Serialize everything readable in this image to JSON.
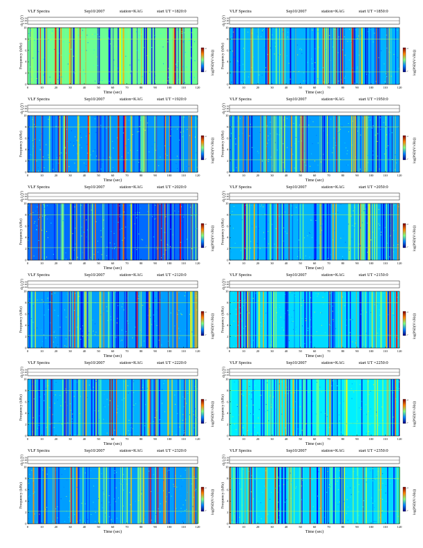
{
  "chart_data": [
    {
      "type": "heatmap",
      "title": "VLF Spectra",
      "date": "Sep10/2007",
      "station": "station=KAG",
      "start": "start  UT =1820:0",
      "ch_label": "ch 1 (V)",
      "ch_ticks": [
        "0.50",
        "0.00",
        "-0.50"
      ],
      "ylabel": "Frequency (kHz)",
      "ylabel_ch": "ch1",
      "xlabel": "Time (sec)",
      "xlim": [
        0,
        120
      ],
      "ylim": [
        0,
        10
      ],
      "xticks": [
        0,
        10,
        20,
        30,
        40,
        50,
        60,
        70,
        80,
        90,
        100,
        110,
        120
      ],
      "yticks": [
        0,
        2,
        4,
        6,
        8,
        10
      ],
      "colorbar_label": "log(PSD(V/√Hz))",
      "colorbar_ticks": [
        "-4",
        "-7"
      ]
    },
    {
      "type": "heatmap",
      "title": "VLF Spectra",
      "date": "Sep10/2007",
      "station": "station=KAG",
      "start": "start  UT =1850:0",
      "ch_label": "ch 1 (V)",
      "ch_ticks": [
        "0.50",
        "0.00",
        "-0.50"
      ],
      "ylabel": "Frequency (kHz)",
      "ylabel_ch": "ch1",
      "xlabel": "Time (sec)",
      "xlim": [
        0,
        120
      ],
      "ylim": [
        0,
        10
      ],
      "xticks": [
        0,
        10,
        20,
        30,
        40,
        50,
        60,
        70,
        80,
        90,
        100,
        110,
        120
      ],
      "yticks": [
        0,
        2,
        4,
        6,
        8,
        10
      ],
      "colorbar_label": "log(PSD(V/√Hz))",
      "colorbar_ticks": [
        "-4",
        "-7"
      ]
    },
    {
      "type": "heatmap",
      "title": "VLF Spectra",
      "date": "Sep10/2007",
      "station": "station=KAG",
      "start": "start  UT =1920:0",
      "ch_label": "ch 1 (V)",
      "ch_ticks": [
        "0.50",
        "0.00",
        "-0.50"
      ],
      "ylabel": "Frequency (kHz)",
      "ylabel_ch": "ch1",
      "xlabel": "Time (sec)",
      "xlim": [
        0,
        120
      ],
      "ylim": [
        0,
        10
      ],
      "xticks": [
        0,
        10,
        20,
        30,
        40,
        50,
        60,
        70,
        80,
        90,
        100,
        110,
        120
      ],
      "yticks": [
        0,
        2,
        4,
        6,
        8,
        10
      ],
      "colorbar_label": "log(PSD(V/√Hz))",
      "colorbar_ticks": [
        "-4",
        "-7"
      ]
    },
    {
      "type": "heatmap",
      "title": "VLF Spectra",
      "date": "Sep10/2007",
      "station": "station=KAG",
      "start": "start  UT =1950:0",
      "ch_label": "ch 1 (V)",
      "ch_ticks": [
        "0.50",
        "0.00",
        "-0.50"
      ],
      "ylabel": "Frequency (kHz)",
      "ylabel_ch": "ch1",
      "xlabel": "Time (sec)",
      "xlim": [
        0,
        120
      ],
      "ylim": [
        0,
        10
      ],
      "xticks": [
        0,
        10,
        20,
        30,
        40,
        50,
        60,
        70,
        80,
        90,
        100,
        110,
        120
      ],
      "yticks": [
        0,
        2,
        4,
        6,
        8,
        10
      ],
      "colorbar_label": "log(PSD(V/√Hz))",
      "colorbar_ticks": [
        "-4",
        "-7"
      ]
    },
    {
      "type": "heatmap",
      "title": "VLF Spectra",
      "date": "Sep10/2007",
      "station": "station=KAG",
      "start": "start  UT =2020:0",
      "ch_label": "ch 1 (V)",
      "ch_ticks": [
        "0.50",
        "0.00",
        "-0.50"
      ],
      "ylabel": "Frequency (kHz)",
      "ylabel_ch": "ch1",
      "xlabel": "Time (sec)",
      "xlim": [
        0,
        120
      ],
      "ylim": [
        0,
        10
      ],
      "xticks": [
        0,
        10,
        20,
        30,
        40,
        50,
        60,
        70,
        80,
        90,
        100,
        110,
        120
      ],
      "yticks": [
        0,
        2,
        4,
        6,
        8,
        10
      ],
      "colorbar_label": "log(PSD(V/√Hz))",
      "colorbar_ticks": [
        "-4",
        "-7"
      ]
    },
    {
      "type": "heatmap",
      "title": "VLF Spectra",
      "date": "Sep10/2007",
      "station": "station=KAG",
      "start": "start  UT =2050:0",
      "ch_label": "ch 1 (V)",
      "ch_ticks": [
        "0.50",
        "0.00",
        "-0.50"
      ],
      "ylabel": "Frequency (kHz)",
      "ylabel_ch": "ch1",
      "xlabel": "Time (sec)",
      "xlim": [
        0,
        120
      ],
      "ylim": [
        0,
        10
      ],
      "xticks": [
        0,
        10,
        20,
        30,
        40,
        50,
        60,
        70,
        80,
        90,
        100,
        110,
        120
      ],
      "yticks": [
        0,
        2,
        4,
        6,
        8,
        10
      ],
      "colorbar_label": "log(PSD(V/√Hz))",
      "colorbar_ticks": [
        "-4",
        "-7"
      ]
    },
    {
      "type": "heatmap",
      "title": "VLF Spectra",
      "date": "Sep10/2007",
      "station": "station=KAG",
      "start": "start  UT =2120:0",
      "ch_label": "ch 1 (V)",
      "ch_ticks": [
        "0.50",
        "0.00",
        "-0.50"
      ],
      "ylabel": "Frequency (kHz)",
      "ylabel_ch": "ch1",
      "xlabel": "Time (sec)",
      "xlim": [
        0,
        120
      ],
      "ylim": [
        0,
        10
      ],
      "xticks": [
        0,
        10,
        20,
        30,
        40,
        50,
        60,
        70,
        80,
        90,
        100,
        110,
        120
      ],
      "yticks": [
        0,
        2,
        4,
        6,
        8,
        10
      ],
      "colorbar_label": "log(PSD(V/√Hz))",
      "colorbar_ticks": [
        "-4",
        "-7"
      ]
    },
    {
      "type": "heatmap",
      "title": "VLF Spectra",
      "date": "Sep10/2007",
      "station": "station=KAG",
      "start": "start  UT =2150:0",
      "ch_label": "ch 1 (V)",
      "ch_ticks": [
        "0.50",
        "0.00",
        "-0.50"
      ],
      "ylabel": "Frequency (kHz)",
      "ylabel_ch": "ch1",
      "xlabel": "Time (sec)",
      "xlim": [
        0,
        120
      ],
      "ylim": [
        0,
        10
      ],
      "xticks": [
        0,
        10,
        20,
        30,
        40,
        50,
        60,
        70,
        80,
        90,
        100,
        110,
        120
      ],
      "yticks": [
        0,
        2,
        4,
        6,
        8,
        10
      ],
      "colorbar_label": "log(PSD(V/√Hz))",
      "colorbar_ticks": [
        "-4",
        "-7"
      ]
    },
    {
      "type": "heatmap",
      "title": "VLF Spectra",
      "date": "Sep10/2007",
      "station": "station=KAG",
      "start": "start  UT =2220:0",
      "ch_label": "ch 1 (V)",
      "ch_ticks": [
        "0.50",
        "0.00",
        "-0.50"
      ],
      "ylabel": "Frequency (kHz)",
      "ylabel_ch": "ch1",
      "xlabel": "Time (sec)",
      "xlim": [
        0,
        120
      ],
      "ylim": [
        0,
        10
      ],
      "xticks": [
        0,
        10,
        20,
        30,
        40,
        50,
        60,
        70,
        80,
        90,
        100,
        110,
        120
      ],
      "yticks": [
        0,
        2,
        4,
        6,
        8,
        10
      ],
      "colorbar_label": "log(PSD(V/√Hz))",
      "colorbar_ticks": [
        "-4",
        "-7"
      ]
    },
    {
      "type": "heatmap",
      "title": "VLF Spectra",
      "date": "Sep10/2007",
      "station": "station=KAG",
      "start": "start  UT =2250:0",
      "ch_label": "ch 1 (V)",
      "ch_ticks": [
        "0.50",
        "0.00",
        "-0.50"
      ],
      "ylabel": "Frequency (kHz)",
      "ylabel_ch": "ch1",
      "xlabel": "Time (sec)",
      "xlim": [
        0,
        120
      ],
      "ylim": [
        0,
        10
      ],
      "xticks": [
        0,
        10,
        20,
        30,
        40,
        50,
        60,
        70,
        80,
        90,
        100,
        110,
        120
      ],
      "yticks": [
        0,
        2,
        4,
        6,
        8,
        10
      ],
      "colorbar_label": "log(PSD(V/√Hz))",
      "colorbar_ticks": [
        "-4",
        "-7"
      ]
    },
    {
      "type": "heatmap",
      "title": "VLF Spectra",
      "date": "Sep10/2007",
      "station": "station=KAG",
      "start": "start  UT =2320:0",
      "ch_label": "ch 1 (V)",
      "ch_ticks": [
        "0.50",
        "0.00",
        "-0.50"
      ],
      "ylabel": "Frequency (kHz)",
      "ylabel_ch": "ch1",
      "xlabel": "Time (sec)",
      "xlim": [
        0,
        120
      ],
      "ylim": [
        0,
        10
      ],
      "xticks": [
        0,
        10,
        20,
        30,
        40,
        50,
        60,
        70,
        80,
        90,
        100,
        110,
        120
      ],
      "yticks": [
        0,
        2,
        4,
        6,
        8,
        10
      ],
      "colorbar_label": "log(PSD(V/√Hz))",
      "colorbar_ticks": [
        "-4",
        "-7"
      ]
    },
    {
      "type": "heatmap",
      "title": "VLF Spectra",
      "date": "Sep10/2007",
      "station": "station=KAG",
      "start": "start  UT =2350:0",
      "ch_label": "ch 1 (V)",
      "ch_ticks": [
        "0.50",
        "0.00",
        "-0.50"
      ],
      "ylabel": "Frequency (kHz)",
      "ylabel_ch": "ch1",
      "xlabel": "Time (sec)",
      "xlim": [
        0,
        120
      ],
      "ylim": [
        0,
        10
      ],
      "xticks": [
        0,
        10,
        20,
        30,
        40,
        50,
        60,
        70,
        80,
        90,
        100,
        110,
        120
      ],
      "yticks": [
        0,
        2,
        4,
        6,
        8,
        10
      ],
      "colorbar_label": "log(PSD(V/√Hz))",
      "colorbar_ticks": [
        "-4",
        "-7"
      ]
    }
  ]
}
